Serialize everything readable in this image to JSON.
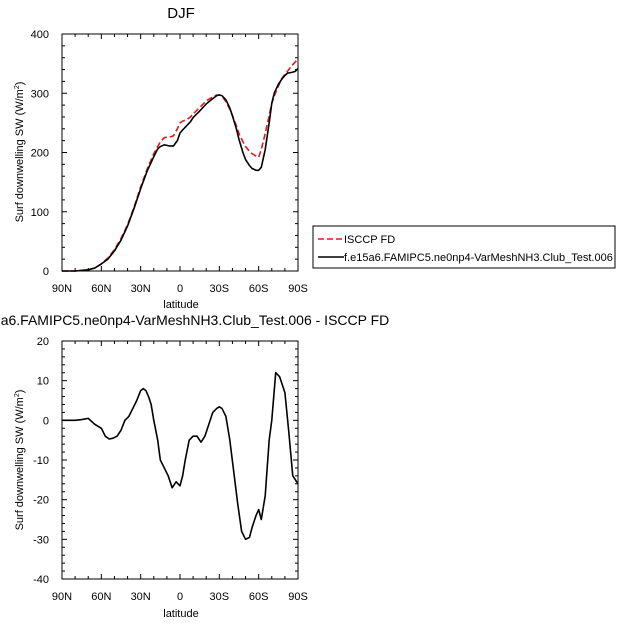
{
  "chart_data": [
    {
      "type": "line",
      "title": "DJF",
      "xlabel": "latitude",
      "ylabel": "Surf downwelling SW (W/m",
      "ylabel_sup": "2",
      "ylabel_end": ")",
      "xlim": [
        90,
        -90
      ],
      "ylim": [
        0,
        400
      ],
      "x_ticks": [
        90,
        60,
        30,
        0,
        -30,
        -60,
        -90
      ],
      "x_tick_labels": [
        "90N",
        "60N",
        "30N",
        "0",
        "30S",
        "60S",
        "90S"
      ],
      "y_ticks": [
        0,
        100,
        200,
        300,
        400
      ],
      "y_tick_labels": [
        "0",
        "100",
        "200",
        "300",
        "400"
      ],
      "grid": false,
      "legend_position": "right",
      "series": [
        {
          "name": "ISCCP FD",
          "color": "#e0191b",
          "dash": true,
          "x": [
            90,
            80,
            70,
            65,
            60,
            55,
            50,
            45,
            40,
            35,
            30,
            25,
            20,
            17,
            15,
            12,
            10,
            8,
            5,
            2,
            0,
            -2,
            -5,
            -8,
            -10,
            -15,
            -20,
            -25,
            -28,
            -30,
            -32,
            -35,
            -38,
            -40,
            -43,
            -45,
            -48,
            -50,
            -53,
            -55,
            -58,
            -60,
            -62,
            -65,
            -68,
            -70,
            -72,
            -75,
            -78,
            -80,
            -82,
            -85,
            -88,
            -90
          ],
          "y": [
            0,
            0,
            2,
            5,
            12,
            22,
            36,
            55,
            78,
            108,
            142,
            172,
            198,
            210,
            218,
            225,
            226,
            226,
            228,
            240,
            250,
            253,
            255,
            260,
            265,
            276,
            287,
            294,
            297,
            297,
            295,
            286,
            273,
            262,
            245,
            232,
            218,
            210,
            202,
            198,
            194,
            192,
            205,
            232,
            262,
            283,
            296,
            312,
            326,
            332,
            337,
            346,
            353,
            358
          ]
        },
        {
          "name": "f.e15a6.FAMIPC5.ne0np4-VarMeshNH3.Club_Test.006",
          "color": "#000000",
          "dash": false,
          "x": [
            90,
            80,
            70,
            65,
            60,
            55,
            50,
            45,
            40,
            35,
            30,
            25,
            20,
            17,
            15,
            12,
            10,
            8,
            5,
            2,
            0,
            -2,
            -5,
            -8,
            -10,
            -15,
            -20,
            -25,
            -28,
            -30,
            -32,
            -35,
            -38,
            -40,
            -43,
            -45,
            -48,
            -50,
            -53,
            -55,
            -58,
            -60,
            -62,
            -65,
            -68,
            -70,
            -72,
            -75,
            -78,
            -80,
            -82,
            -85,
            -88,
            -90
          ],
          "y": [
            0,
            0,
            2,
            5,
            12,
            20,
            34,
            52,
            76,
            106,
            139,
            169,
            193,
            206,
            210,
            213,
            212,
            211,
            211,
            220,
            233,
            238,
            245,
            252,
            259,
            270,
            282,
            291,
            296,
            297,
            296,
            289,
            275,
            262,
            240,
            222,
            200,
            188,
            178,
            173,
            170,
            170,
            175,
            205,
            250,
            283,
            301,
            315,
            325,
            330,
            334,
            335,
            337,
            342
          ]
        }
      ]
    },
    {
      "type": "line",
      "title": "a6.FAMIPC5.ne0np4-VarMeshNH3.Club_Test.006 - ISCCP FD",
      "xlabel": "latitude",
      "ylabel": "Surf downwelling SW (W/m",
      "ylabel_sup": "2",
      "ylabel_end": ")",
      "xlim": [
        90,
        -90
      ],
      "ylim": [
        -40,
        20
      ],
      "x_ticks": [
        90,
        60,
        30,
        0,
        -30,
        -60,
        -90
      ],
      "x_tick_labels": [
        "90N",
        "60N",
        "30N",
        "0",
        "30S",
        "60S",
        "90S"
      ],
      "y_ticks": [
        -40,
        -30,
        -20,
        -10,
        0,
        10,
        20
      ],
      "y_tick_labels": [
        "-40",
        "-30",
        "-20",
        "-10",
        "0",
        "10",
        "20"
      ],
      "grid": false,
      "series": [
        {
          "color": "#000000",
          "dash": false,
          "x": [
            90,
            80,
            75,
            70,
            65,
            60,
            57,
            54,
            51,
            48,
            45,
            42,
            39,
            36,
            33,
            30,
            28,
            26,
            24,
            22,
            20,
            17,
            15,
            12,
            9,
            6,
            3,
            0,
            -2,
            -4,
            -7,
            -10,
            -13,
            -16,
            -19,
            -22,
            -25,
            -28,
            -30,
            -32,
            -35,
            -38,
            -41,
            -44,
            -47,
            -50,
            -53,
            -55,
            -58,
            -60,
            -62,
            -65,
            -68,
            -70,
            -73,
            -76,
            -78,
            -80,
            -83,
            -86,
            -88,
            -90
          ],
          "y": [
            0,
            0,
            0.2,
            0.5,
            -1,
            -2,
            -4,
            -4.7,
            -4.5,
            -4,
            -2.5,
            0,
            1,
            3,
            5,
            7.5,
            8,
            7.5,
            6,
            4,
            0,
            -5,
            -10,
            -12,
            -14,
            -17,
            -15.5,
            -16.5,
            -14,
            -10,
            -5,
            -4,
            -4,
            -5.5,
            -4,
            -1,
            2,
            3,
            3.4,
            3,
            1,
            -5,
            -13,
            -21,
            -28,
            -30,
            -29.5,
            -27,
            -24,
            -22.5,
            -25,
            -19,
            -5,
            0,
            12,
            11,
            9,
            7,
            -3,
            -14,
            -15,
            -16
          ]
        }
      ]
    }
  ]
}
